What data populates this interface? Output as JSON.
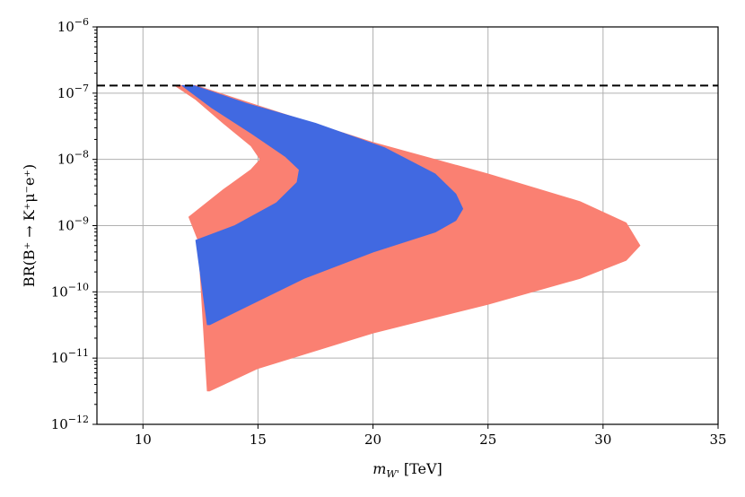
{
  "chart_data": {
    "type": "area",
    "title": "",
    "xlabel": "m_{W'} [TeV]",
    "ylabel": "BR(B⁺ → K⁺μ⁻e⁺)",
    "xlim": [
      8,
      35
    ],
    "ylim_log10": [
      -12,
      -6
    ],
    "yscale": "log",
    "grid": true,
    "x_ticks": [
      10,
      15,
      20,
      25,
      30,
      35
    ],
    "y_tick_exponents": [
      -12,
      -11,
      -10,
      -9,
      -8,
      -7,
      -6
    ],
    "y_tick_base": "10",
    "reference_line": {
      "y": 1.3e-07,
      "style": "dashed",
      "color": "#000000"
    },
    "series": [
      {
        "color": "#fa8072",
        "boundary": [
          {
            "x": 11.4,
            "y": 1.3e-07
          },
          {
            "x": 12.3,
            "y": 1.3e-07
          },
          {
            "x": 16.0,
            "y": 5e-08
          },
          {
            "x": 20.0,
            "y": 1.8e-08
          },
          {
            "x": 25.0,
            "y": 6e-09
          },
          {
            "x": 29.0,
            "y": 2.3e-09
          },
          {
            "x": 31.0,
            "y": 1.1e-09
          },
          {
            "x": 31.6,
            "y": 5e-10
          },
          {
            "x": 31.0,
            "y": 3e-10
          },
          {
            "x": 29.0,
            "y": 1.6e-10
          },
          {
            "x": 25.0,
            "y": 6.5e-11
          },
          {
            "x": 20.0,
            "y": 2.4e-11
          },
          {
            "x": 15.0,
            "y": 7e-12
          },
          {
            "x": 13.5,
            "y": 4e-12
          },
          {
            "x": 12.9,
            "y": 3.2e-12
          },
          {
            "x": 12.8,
            "y": 3.2e-12
          },
          {
            "x": 12.4,
            "y": 6e-10
          },
          {
            "x": 12.0,
            "y": 1.35e-09
          },
          {
            "x": 13.5,
            "y": 3.5e-09
          },
          {
            "x": 14.7,
            "y": 7e-09
          },
          {
            "x": 15.1,
            "y": 1e-08
          },
          {
            "x": 14.7,
            "y": 1.6e-08
          },
          {
            "x": 13.5,
            "y": 3.5e-08
          },
          {
            "x": 12.3,
            "y": 8e-08
          },
          {
            "x": 11.4,
            "y": 1.3e-07
          }
        ]
      },
      {
        "color": "#4169e1",
        "boundary": [
          {
            "x": 11.7,
            "y": 1.3e-07
          },
          {
            "x": 12.2,
            "y": 1.3e-07
          },
          {
            "x": 14.5,
            "y": 7e-08
          },
          {
            "x": 17.5,
            "y": 3.5e-08
          },
          {
            "x": 20.5,
            "y": 1.5e-08
          },
          {
            "x": 22.7,
            "y": 6e-09
          },
          {
            "x": 23.6,
            "y": 3e-09
          },
          {
            "x": 23.9,
            "y": 1.8e-09
          },
          {
            "x": 23.6,
            "y": 1.2e-09
          },
          {
            "x": 22.7,
            "y": 8e-10
          },
          {
            "x": 20.0,
            "y": 4e-10
          },
          {
            "x": 17.0,
            "y": 1.6e-10
          },
          {
            "x": 14.5,
            "y": 6e-11
          },
          {
            "x": 12.9,
            "y": 3.2e-11
          },
          {
            "x": 12.8,
            "y": 3.2e-11
          },
          {
            "x": 12.3,
            "y": 6e-10
          },
          {
            "x": 14.0,
            "y": 1e-09
          },
          {
            "x": 15.8,
            "y": 2.2e-09
          },
          {
            "x": 16.7,
            "y": 4.5e-09
          },
          {
            "x": 16.8,
            "y": 7e-09
          },
          {
            "x": 16.2,
            "y": 1.1e-08
          },
          {
            "x": 14.7,
            "y": 2.5e-08
          },
          {
            "x": 13.0,
            "y": 6e-08
          },
          {
            "x": 11.7,
            "y": 1.3e-07
          }
        ]
      }
    ]
  }
}
